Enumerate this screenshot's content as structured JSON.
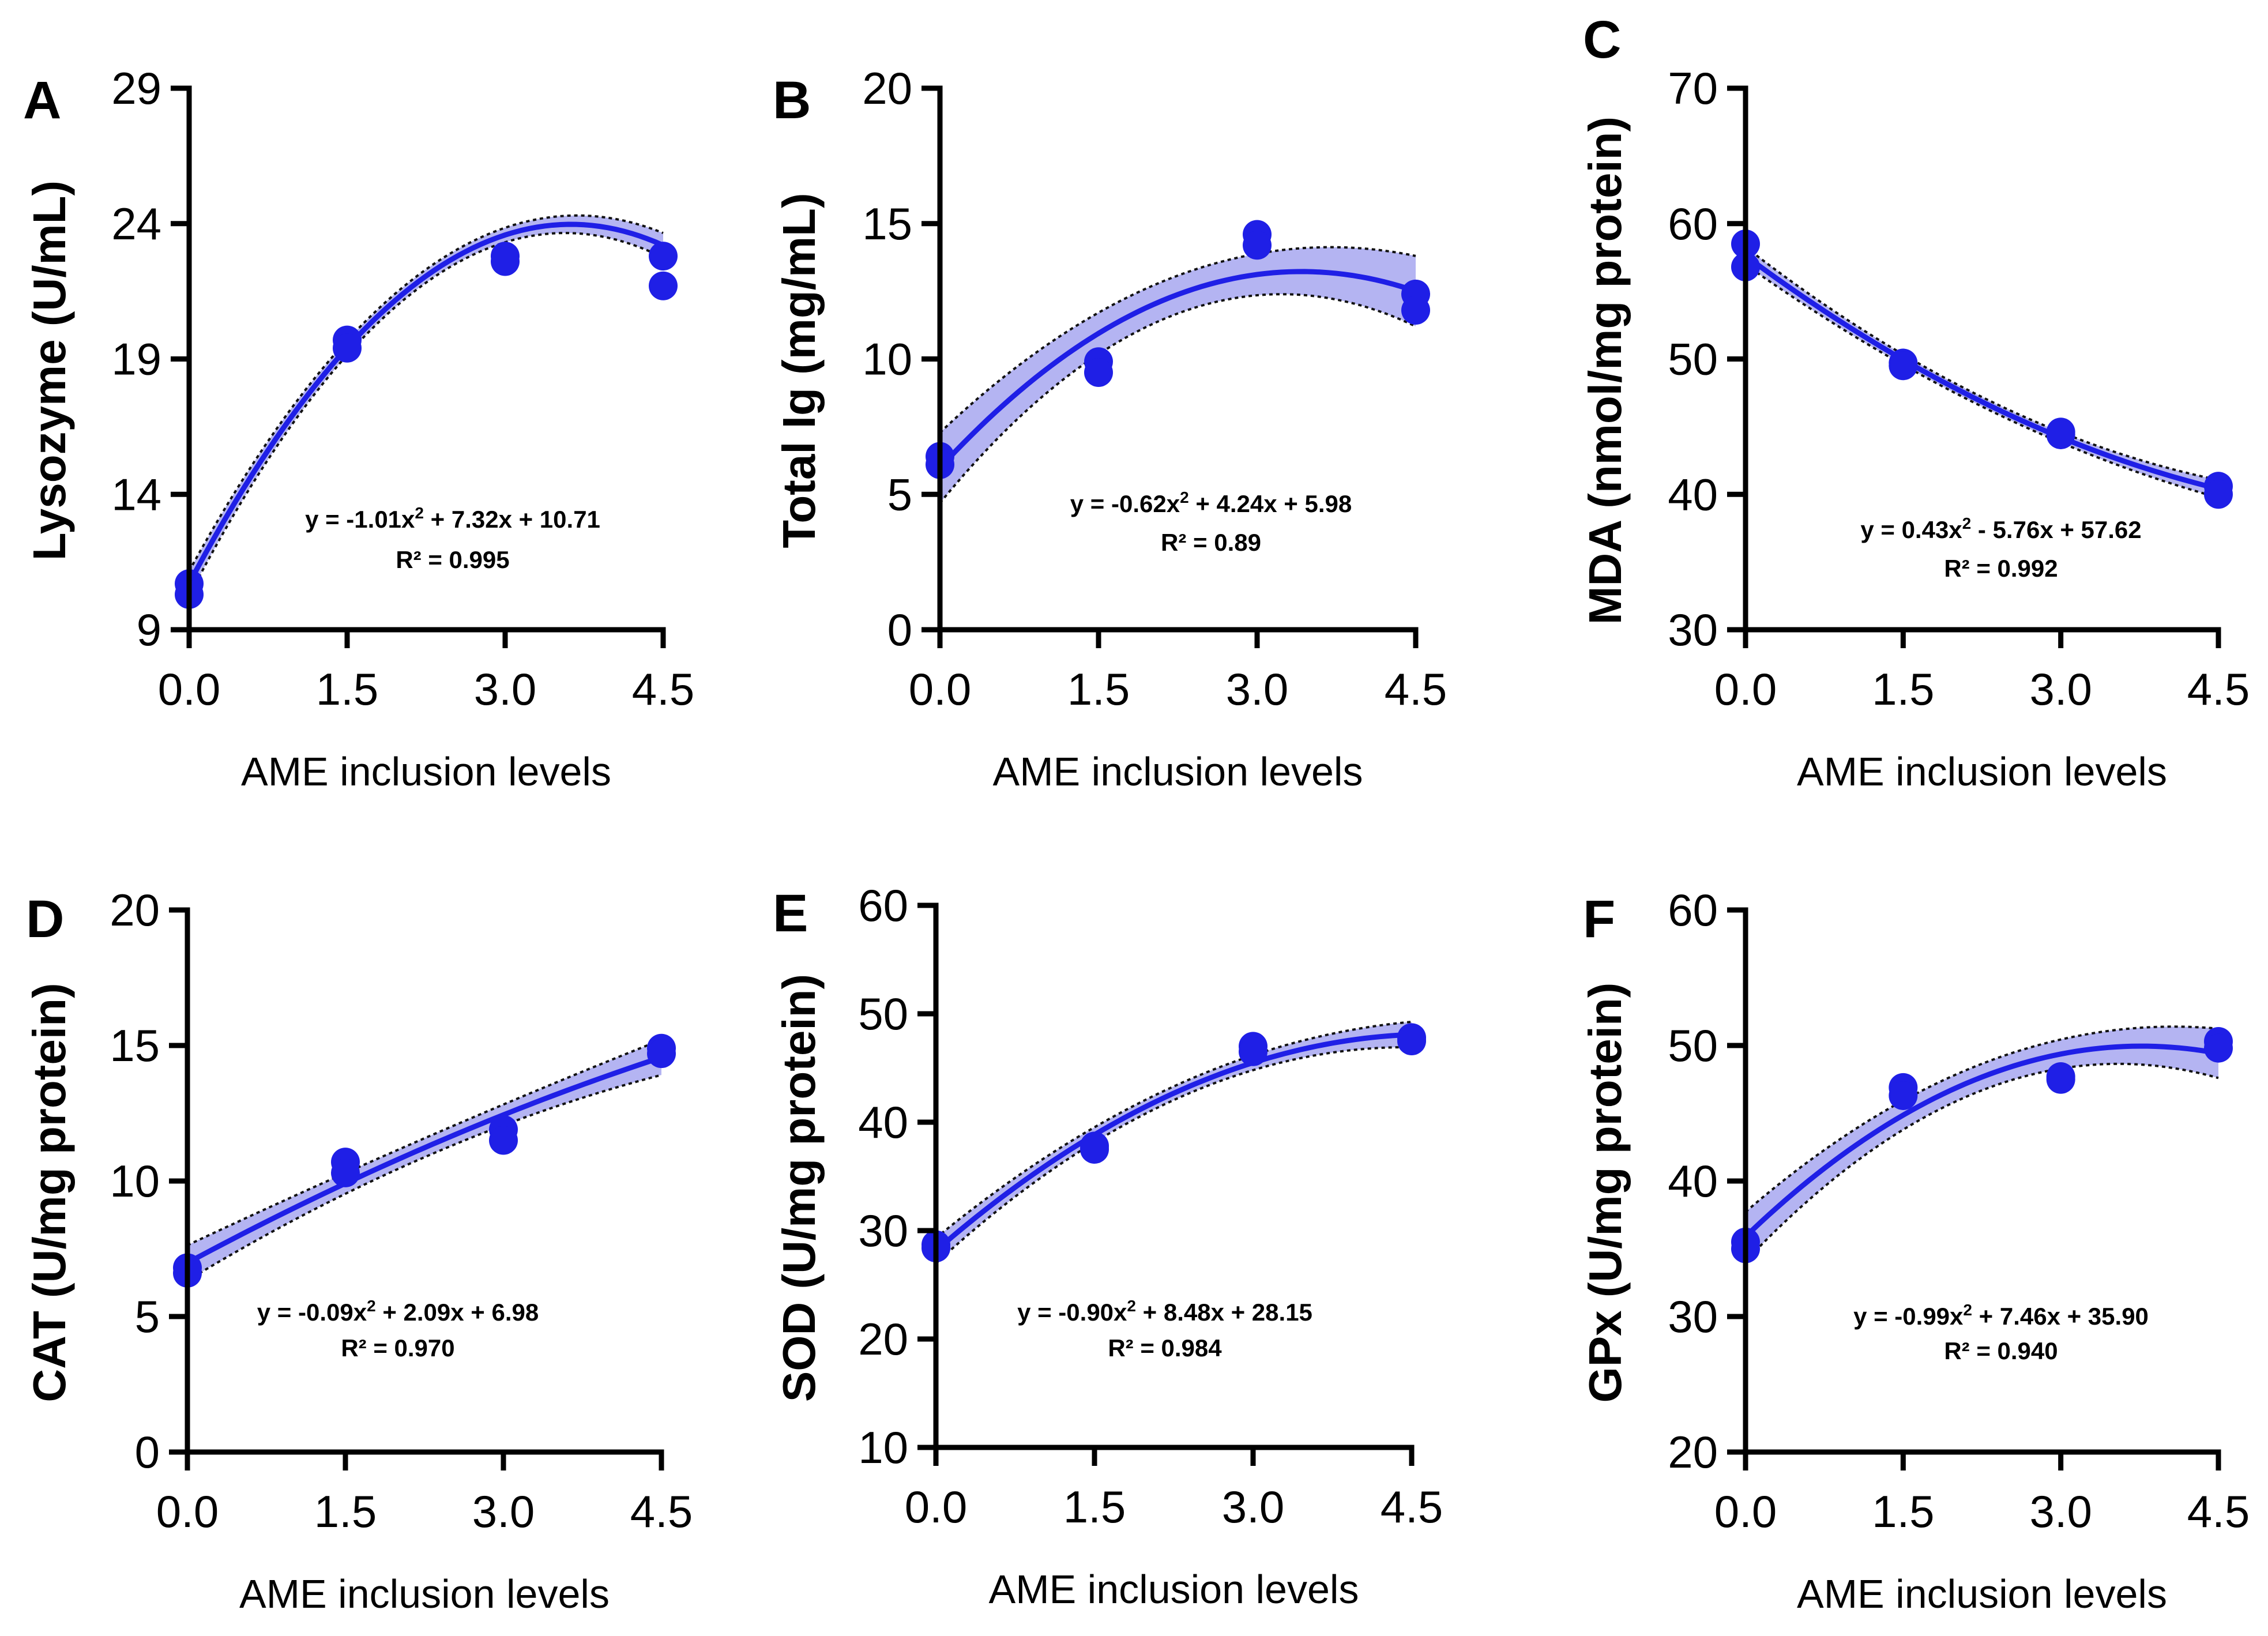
{
  "colors": {
    "series": "#1f1fe6",
    "band": "#b4b4f2",
    "axis": "#000000",
    "band_edge": "#111111"
  },
  "chart_data": [
    {
      "panel": "A",
      "type": "scatter",
      "ylabel": "Lysozyme (U/mL)",
      "xlabel": "AME inclusion levels",
      "x_ticks": [
        "0.0",
        "1.5",
        "3.0",
        "4.5"
      ],
      "y_ticks": [
        "9",
        "14",
        "19",
        "24",
        "29"
      ],
      "ylim": [
        9,
        29
      ],
      "x": [
        0,
        0,
        1.5,
        1.5,
        3.0,
        3.0,
        4.5,
        4.5
      ],
      "y": [
        10.7,
        10.3,
        19.7,
        19.4,
        22.8,
        22.6,
        22.8,
        21.7
      ],
      "fit_coefs": [
        10.71,
        7.32,
        -1.01
      ],
      "band_halfwidth": 0.35,
      "equation_main": "y = -1.01x",
      "equation_rest": " + 7.32x + 10.71",
      "r_squared": "R² = 0.995"
    },
    {
      "panel": "B",
      "type": "scatter",
      "ylabel": "Total Ig (mg/mL)",
      "xlabel": "AME inclusion levels",
      "x_ticks": [
        "0.0",
        "1.5",
        "3.0",
        "4.5"
      ],
      "y_ticks": [
        "0",
        "5",
        "10",
        "15",
        "20"
      ],
      "ylim": [
        0,
        20
      ],
      "x": [
        0,
        0,
        1.5,
        1.5,
        3.0,
        3.0,
        4.5,
        4.5
      ],
      "y": [
        6.4,
        6.1,
        9.9,
        9.5,
        14.6,
        14.2,
        12.4,
        11.8
      ],
      "fit_coefs": [
        5.98,
        4.24,
        -0.62
      ],
      "band_halfwidth": 1.0,
      "equation_main": "y = -0.62x",
      "equation_rest": " + 4.24x + 5.98",
      "r_squared": "R² = 0.89"
    },
    {
      "panel": "C",
      "type": "scatter",
      "ylabel": "MDA (nmol/mg protein)",
      "xlabel": "AME inclusion levels",
      "x_ticks": [
        "0.0",
        "1.5",
        "3.0",
        "4.5"
      ],
      "y_ticks": [
        "30",
        "40",
        "50",
        "60",
        "70"
      ],
      "ylim": [
        30,
        70
      ],
      "x": [
        0,
        0,
        1.5,
        1.5,
        3.0,
        3.0,
        4.5,
        4.5
      ],
      "y": [
        58.5,
        56.8,
        49.7,
        49.5,
        44.6,
        44.4,
        40.6,
        40.0
      ],
      "fit_coefs": [
        57.62,
        -5.76,
        0.43
      ],
      "band_halfwidth": 0.5,
      "equation_main": "y = 0.43x",
      "equation_rest": " - 5.76x + 57.62",
      "r_squared": "R² = 0.992"
    },
    {
      "panel": "D",
      "type": "scatter",
      "ylabel": "CAT (U/mg protein)",
      "xlabel": "AME inclusion levels",
      "x_ticks": [
        "0.0",
        "1.5",
        "3.0",
        "4.5"
      ],
      "y_ticks": [
        "0",
        "5",
        "10",
        "15",
        "20"
      ],
      "ylim": [
        0,
        20
      ],
      "x": [
        0,
        0,
        1.5,
        1.5,
        3.0,
        3.0,
        4.5,
        4.5
      ],
      "y": [
        6.8,
        6.6,
        10.7,
        10.3,
        11.9,
        11.5,
        14.9,
        14.7
      ],
      "fit_coefs": [
        6.98,
        2.09,
        -0.09
      ],
      "band_halfwidth": 0.5,
      "equation_main": "y = -0.09x",
      "equation_rest": " + 2.09x + 6.98",
      "r_squared": "R² = 0.970"
    },
    {
      "panel": "E",
      "type": "scatter",
      "ylabel": "SOD (U/mg protein)",
      "xlabel": "AME inclusion levels",
      "x_ticks": [
        "0.0",
        "1.5",
        "3.0",
        "4.5"
      ],
      "y_ticks": [
        "10",
        "20",
        "30",
        "40",
        "50",
        "60"
      ],
      "ylim": [
        10,
        60
      ],
      "x": [
        0,
        0,
        1.5,
        1.5,
        3.0,
        3.0,
        4.5,
        4.5
      ],
      "y": [
        28.7,
        28.4,
        37.8,
        37.5,
        47.0,
        46.5,
        47.8,
        47.5
      ],
      "fit_coefs": [
        28.15,
        8.48,
        -0.9
      ],
      "band_halfwidth": 0.9,
      "equation_main": "y = -0.90x",
      "equation_rest": " + 8.48x + 28.15",
      "r_squared": "R² = 0.984"
    },
    {
      "panel": "F",
      "type": "scatter",
      "ylabel": "GPx (U/mg protein)",
      "xlabel": "AME inclusion levels",
      "x_ticks": [
        "0.0",
        "1.5",
        "3.0",
        "4.5"
      ],
      "y_ticks": [
        "20",
        "30",
        "40",
        "50",
        "60"
      ],
      "ylim": [
        20,
        60
      ],
      "x": [
        0,
        0,
        1.5,
        1.5,
        3.0,
        3.0,
        4.5,
        4.5
      ],
      "y": [
        35.5,
        35.0,
        46.9,
        46.3,
        47.7,
        47.5,
        50.3,
        49.8
      ],
      "fit_coefs": [
        35.9,
        7.46,
        -0.99
      ],
      "band_halfwidth": 1.4,
      "equation_main": "y = -0.99x",
      "equation_rest": " + 7.46x + 35.90",
      "r_squared": "R² = 0.940"
    }
  ]
}
